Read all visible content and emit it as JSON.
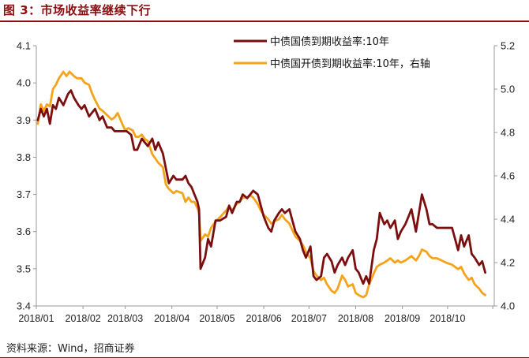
{
  "figure": {
    "title": "图 3：市场收益率继续下行",
    "source": "资料来源：Wind，招商证券"
  },
  "colors": {
    "accent": "#8B0E10",
    "series1": "#7B0E0E",
    "series2": "#F5A31A",
    "axis": "#999999"
  },
  "chart_data": {
    "type": "line",
    "x_ticks": [
      "2018/01",
      "2018/02",
      "2018/03",
      "2018/04",
      "2018/05",
      "2018/06",
      "2018/07",
      "2018/08",
      "2018/09",
      "2018/10"
    ],
    "y_left": {
      "ticks": [
        "3.4",
        "3.5",
        "3.6",
        "3.7",
        "3.8",
        "3.9",
        "4.0",
        "4.1"
      ],
      "lim": [
        3.4,
        4.1
      ]
    },
    "y_right": {
      "ticks": [
        "4.0",
        "4.2",
        "4.4",
        "4.6",
        "4.8",
        "5.0",
        "5.2"
      ],
      "lim": [
        4.0,
        5.2
      ]
    },
    "legend_position": "top-right",
    "grid": false,
    "series": [
      {
        "name": "中债国债到期收益率:10年",
        "axis": "left",
        "color": "#7B0E0E",
        "points": [
          [
            "2018-01-02",
            3.9
          ],
          [
            "2018-01-04",
            3.93
          ],
          [
            "2018-01-06",
            3.91
          ],
          [
            "2018-01-08",
            3.93
          ],
          [
            "2018-01-10",
            3.89
          ],
          [
            "2018-01-12",
            3.94
          ],
          [
            "2018-01-14",
            3.93
          ],
          [
            "2018-01-16",
            3.96
          ],
          [
            "2018-01-19",
            3.94
          ],
          [
            "2018-01-22",
            3.97
          ],
          [
            "2018-01-24",
            3.98
          ],
          [
            "2018-01-26",
            3.96
          ],
          [
            "2018-01-29",
            3.94
          ],
          [
            "2018-01-31",
            3.93
          ],
          [
            "2018-02-02",
            3.94
          ],
          [
            "2018-02-05",
            3.91
          ],
          [
            "2018-02-07",
            3.92
          ],
          [
            "2018-02-09",
            3.93
          ],
          [
            "2018-02-12",
            3.9
          ],
          [
            "2018-02-14",
            3.91
          ],
          [
            "2018-02-17",
            3.88
          ],
          [
            "2018-02-20",
            3.88
          ],
          [
            "2018-02-22",
            3.87
          ],
          [
            "2018-02-24",
            3.87
          ],
          [
            "2018-02-28",
            3.87
          ],
          [
            "2018-03-02",
            3.87
          ],
          [
            "2018-03-05",
            3.86
          ],
          [
            "2018-03-07",
            3.82
          ],
          [
            "2018-03-09",
            3.82
          ],
          [
            "2018-03-12",
            3.85
          ],
          [
            "2018-03-14",
            3.84
          ],
          [
            "2018-03-16",
            3.83
          ],
          [
            "2018-03-19",
            3.85
          ],
          [
            "2018-03-21",
            3.82
          ],
          [
            "2018-03-23",
            3.84
          ],
          [
            "2018-03-26",
            3.81
          ],
          [
            "2018-03-28",
            3.77
          ],
          [
            "2018-03-30",
            3.73
          ],
          [
            "2018-04-02",
            3.75
          ],
          [
            "2018-04-04",
            3.74
          ],
          [
            "2018-04-08",
            3.74
          ],
          [
            "2018-04-10",
            3.75
          ],
          [
            "2018-04-12",
            3.73
          ],
          [
            "2018-04-14",
            3.72
          ],
          [
            "2018-04-16",
            3.7
          ],
          [
            "2018-04-18",
            3.68
          ],
          [
            "2018-04-19",
            3.66
          ],
          [
            "2018-04-20",
            3.5
          ],
          [
            "2018-04-23",
            3.53
          ],
          [
            "2018-04-25",
            3.58
          ],
          [
            "2018-04-27",
            3.56
          ],
          [
            "2018-04-30",
            3.63
          ],
          [
            "2018-05-03",
            3.63
          ],
          [
            "2018-05-07",
            3.64
          ],
          [
            "2018-05-09",
            3.67
          ],
          [
            "2018-05-11",
            3.65
          ],
          [
            "2018-05-14",
            3.68
          ],
          [
            "2018-05-16",
            3.68
          ],
          [
            "2018-05-18",
            3.7
          ],
          [
            "2018-05-21",
            3.69
          ],
          [
            "2018-05-23",
            3.7
          ],
          [
            "2018-05-25",
            3.71
          ],
          [
            "2018-05-28",
            3.7
          ],
          [
            "2018-05-30",
            3.67
          ],
          [
            "2018-06-01",
            3.64
          ],
          [
            "2018-06-04",
            3.61
          ],
          [
            "2018-06-06",
            3.6
          ],
          [
            "2018-06-08",
            3.63
          ],
          [
            "2018-06-11",
            3.65
          ],
          [
            "2018-06-13",
            3.66
          ],
          [
            "2018-06-15",
            3.65
          ],
          [
            "2018-06-18",
            3.66
          ],
          [
            "2018-06-20",
            3.63
          ],
          [
            "2018-06-22",
            3.6
          ],
          [
            "2018-06-25",
            3.58
          ],
          [
            "2018-06-27",
            3.55
          ],
          [
            "2018-06-29",
            3.53
          ],
          [
            "2018-07-02",
            3.56
          ],
          [
            "2018-07-04",
            3.48
          ],
          [
            "2018-07-06",
            3.47
          ],
          [
            "2018-07-09",
            3.48
          ],
          [
            "2018-07-11",
            3.53
          ],
          [
            "2018-07-13",
            3.54
          ],
          [
            "2018-07-16",
            3.52
          ],
          [
            "2018-07-18",
            3.49
          ],
          [
            "2018-07-20",
            3.51
          ],
          [
            "2018-07-23",
            3.53
          ],
          [
            "2018-07-25",
            3.51
          ],
          [
            "2018-07-27",
            3.53
          ],
          [
            "2018-07-30",
            3.55
          ],
          [
            "2018-08-01",
            3.5
          ],
          [
            "2018-08-03",
            3.49
          ],
          [
            "2018-08-06",
            3.46
          ],
          [
            "2018-08-08",
            3.48
          ],
          [
            "2018-08-10",
            3.46
          ],
          [
            "2018-08-13",
            3.55
          ],
          [
            "2018-08-15",
            3.58
          ],
          [
            "2018-08-17",
            3.65
          ],
          [
            "2018-08-20",
            3.62
          ],
          [
            "2018-08-22",
            3.63
          ],
          [
            "2018-08-24",
            3.61
          ],
          [
            "2018-08-27",
            3.63
          ],
          [
            "2018-08-29",
            3.58
          ],
          [
            "2018-08-31",
            3.6
          ],
          [
            "2018-09-03",
            3.62
          ],
          [
            "2018-09-05",
            3.64
          ],
          [
            "2018-09-07",
            3.66
          ],
          [
            "2018-09-10",
            3.6
          ],
          [
            "2018-09-12",
            3.65
          ],
          [
            "2018-09-14",
            3.7
          ],
          [
            "2018-09-17",
            3.66
          ],
          [
            "2018-09-19",
            3.62
          ],
          [
            "2018-09-21",
            3.62
          ],
          [
            "2018-09-24",
            3.61
          ],
          [
            "2018-09-27",
            3.61
          ],
          [
            "2018-09-30",
            3.61
          ],
          [
            "2018-10-04",
            3.61
          ],
          [
            "2018-10-08",
            3.55
          ],
          [
            "2018-10-10",
            3.59
          ],
          [
            "2018-10-12",
            3.56
          ],
          [
            "2018-10-15",
            3.59
          ],
          [
            "2018-10-17",
            3.54
          ],
          [
            "2018-10-19",
            3.53
          ],
          [
            "2018-10-22",
            3.51
          ],
          [
            "2018-10-24",
            3.52
          ],
          [
            "2018-10-26",
            3.49
          ]
        ]
      },
      {
        "name": "中债国开债到期收益率:10年，右轴",
        "axis": "right",
        "color": "#F5A31A",
        "points": [
          [
            "2018-01-02",
            4.84
          ],
          [
            "2018-01-04",
            4.93
          ],
          [
            "2018-01-06",
            4.9
          ],
          [
            "2018-01-08",
            4.93
          ],
          [
            "2018-01-10",
            4.92
          ],
          [
            "2018-01-12",
            5.0
          ],
          [
            "2018-01-14",
            5.02
          ],
          [
            "2018-01-16",
            5.05
          ],
          [
            "2018-01-19",
            5.08
          ],
          [
            "2018-01-21",
            5.06
          ],
          [
            "2018-01-23",
            5.08
          ],
          [
            "2018-01-26",
            5.06
          ],
          [
            "2018-01-28",
            5.05
          ],
          [
            "2018-01-31",
            5.05
          ],
          [
            "2018-02-02",
            5.03
          ],
          [
            "2018-02-05",
            5.02
          ],
          [
            "2018-02-07",
            4.98
          ],
          [
            "2018-02-09",
            4.95
          ],
          [
            "2018-02-12",
            4.91
          ],
          [
            "2018-02-14",
            4.9
          ],
          [
            "2018-02-17",
            4.88
          ],
          [
            "2018-02-20",
            4.86
          ],
          [
            "2018-02-22",
            4.87
          ],
          [
            "2018-02-24",
            4.89
          ],
          [
            "2018-02-27",
            4.84
          ],
          [
            "2018-03-01",
            4.81
          ],
          [
            "2018-03-03",
            4.82
          ],
          [
            "2018-03-06",
            4.81
          ],
          [
            "2018-03-08",
            4.78
          ],
          [
            "2018-03-10",
            4.78
          ],
          [
            "2018-03-12",
            4.79
          ],
          [
            "2018-03-14",
            4.77
          ],
          [
            "2018-03-16",
            4.76
          ],
          [
            "2018-03-19",
            4.7
          ],
          [
            "2018-03-21",
            4.68
          ],
          [
            "2018-03-23",
            4.66
          ],
          [
            "2018-03-26",
            4.64
          ],
          [
            "2018-03-28",
            4.56
          ],
          [
            "2018-03-30",
            4.54
          ],
          [
            "2018-04-02",
            4.52
          ],
          [
            "2018-04-04",
            4.53
          ],
          [
            "2018-04-08",
            4.52
          ],
          [
            "2018-04-10",
            4.48
          ],
          [
            "2018-04-12",
            4.5
          ],
          [
            "2018-04-14",
            4.48
          ],
          [
            "2018-04-16",
            4.48
          ],
          [
            "2018-04-18",
            4.45
          ],
          [
            "2018-04-19",
            4.43
          ],
          [
            "2018-04-20",
            4.3
          ],
          [
            "2018-04-23",
            4.33
          ],
          [
            "2018-04-25",
            4.32
          ],
          [
            "2018-04-27",
            4.36
          ],
          [
            "2018-04-30",
            4.39
          ],
          [
            "2018-05-03",
            4.41
          ],
          [
            "2018-05-07",
            4.44
          ],
          [
            "2018-05-09",
            4.46
          ],
          [
            "2018-05-11",
            4.44
          ],
          [
            "2018-05-14",
            4.47
          ],
          [
            "2018-05-16",
            4.48
          ],
          [
            "2018-05-18",
            4.5
          ],
          [
            "2018-05-21",
            4.5
          ],
          [
            "2018-05-23",
            4.51
          ],
          [
            "2018-05-25",
            4.5
          ],
          [
            "2018-05-28",
            4.47
          ],
          [
            "2018-05-30",
            4.44
          ],
          [
            "2018-06-01",
            4.42
          ],
          [
            "2018-06-04",
            4.4
          ],
          [
            "2018-06-06",
            4.38
          ],
          [
            "2018-06-08",
            4.39
          ],
          [
            "2018-06-11",
            4.4
          ],
          [
            "2018-06-13",
            4.42
          ],
          [
            "2018-06-15",
            4.4
          ],
          [
            "2018-06-18",
            4.38
          ],
          [
            "2018-06-20",
            4.35
          ],
          [
            "2018-06-22",
            4.32
          ],
          [
            "2018-06-25",
            4.3
          ],
          [
            "2018-06-27",
            4.28
          ],
          [
            "2018-06-29",
            4.25
          ],
          [
            "2018-07-02",
            4.22
          ],
          [
            "2018-07-04",
            4.16
          ],
          [
            "2018-07-06",
            4.14
          ],
          [
            "2018-07-09",
            4.12
          ],
          [
            "2018-07-11",
            4.13
          ],
          [
            "2018-07-13",
            4.1
          ],
          [
            "2018-07-16",
            4.07
          ],
          [
            "2018-07-18",
            4.06
          ],
          [
            "2018-07-20",
            4.08
          ],
          [
            "2018-07-23",
            4.14
          ],
          [
            "2018-07-25",
            4.12
          ],
          [
            "2018-07-27",
            4.09
          ],
          [
            "2018-07-30",
            4.1
          ],
          [
            "2018-08-01",
            4.06
          ],
          [
            "2018-08-03",
            4.05
          ],
          [
            "2018-08-06",
            4.04
          ],
          [
            "2018-08-08",
            4.05
          ],
          [
            "2018-08-10",
            4.1
          ],
          [
            "2018-08-13",
            4.15
          ],
          [
            "2018-08-15",
            4.18
          ],
          [
            "2018-08-17",
            4.19
          ],
          [
            "2018-08-20",
            4.2
          ],
          [
            "2018-08-22",
            4.21
          ],
          [
            "2018-08-24",
            4.22
          ],
          [
            "2018-08-27",
            4.2
          ],
          [
            "2018-08-29",
            4.21
          ],
          [
            "2018-08-31",
            4.2
          ],
          [
            "2018-09-03",
            4.21
          ],
          [
            "2018-09-05",
            4.22
          ],
          [
            "2018-09-07",
            4.23
          ],
          [
            "2018-09-10",
            4.21
          ],
          [
            "2018-09-12",
            4.23
          ],
          [
            "2018-09-14",
            4.26
          ],
          [
            "2018-09-17",
            4.25
          ],
          [
            "2018-09-19",
            4.23
          ],
          [
            "2018-09-21",
            4.22
          ],
          [
            "2018-09-24",
            4.22
          ],
          [
            "2018-09-27",
            4.21
          ],
          [
            "2018-09-30",
            4.2
          ],
          [
            "2018-10-04",
            4.19
          ],
          [
            "2018-10-08",
            4.17
          ],
          [
            "2018-10-10",
            4.18
          ],
          [
            "2018-10-12",
            4.15
          ],
          [
            "2018-10-15",
            4.12
          ],
          [
            "2018-10-17",
            4.13
          ],
          [
            "2018-10-19",
            4.1
          ],
          [
            "2018-10-22",
            4.08
          ],
          [
            "2018-10-24",
            4.06
          ],
          [
            "2018-10-26",
            4.05
          ]
        ]
      }
    ]
  }
}
